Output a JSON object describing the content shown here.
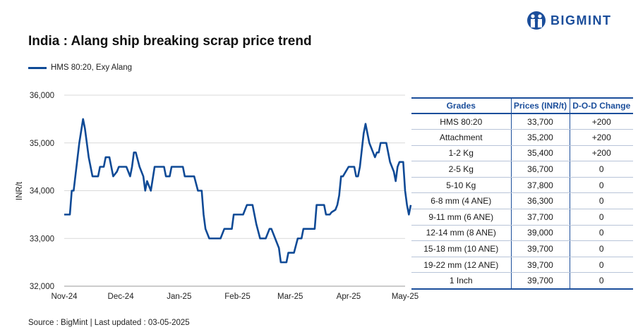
{
  "brand": {
    "name": "BIGMINT",
    "color": "#1b4e9b"
  },
  "title": "India : Alang ship breaking scrap price trend",
  "source": "Source : BigMint | Last updated : 03-05-2025",
  "chart_data": {
    "type": "line",
    "ylabel": "INR/t",
    "ylim": [
      32000,
      36000
    ],
    "yticks": [
      "32,000",
      "33,000",
      "34,000",
      "35,000",
      "36,000"
    ],
    "xticks": [
      "Nov-24",
      "Dec-24",
      "Jan-25",
      "Feb-25",
      "Mar-25",
      "Apr-25",
      "May-25"
    ],
    "grid": "horizontal",
    "legend": "top-left",
    "series": [
      {
        "name": "HMS 80:20, Exy Alang",
        "color": "#0f4a96",
        "points": [
          [
            "2024-11-01",
            33500
          ],
          [
            "2024-11-04",
            33500
          ],
          [
            "2024-11-05",
            34000
          ],
          [
            "2024-11-06",
            34000
          ],
          [
            "2024-11-09",
            35000
          ],
          [
            "2024-11-11",
            35500
          ],
          [
            "2024-11-12",
            35300
          ],
          [
            "2024-11-14",
            34700
          ],
          [
            "2024-11-16",
            34300
          ],
          [
            "2024-11-19",
            34300
          ],
          [
            "2024-11-20",
            34500
          ],
          [
            "2024-11-22",
            34500
          ],
          [
            "2024-11-23",
            34700
          ],
          [
            "2024-11-25",
            34700
          ],
          [
            "2024-11-26",
            34500
          ],
          [
            "2024-11-27",
            34300
          ],
          [
            "2024-11-29",
            34400
          ],
          [
            "2024-11-30",
            34500
          ],
          [
            "2024-12-04",
            34500
          ],
          [
            "2024-12-06",
            34300
          ],
          [
            "2024-12-07",
            34500
          ],
          [
            "2024-12-08",
            34800
          ],
          [
            "2024-12-09",
            34800
          ],
          [
            "2024-12-11",
            34500
          ],
          [
            "2024-12-13",
            34300
          ],
          [
            "2024-12-14",
            34000
          ],
          [
            "2024-12-15",
            34200
          ],
          [
            "2024-12-17",
            34000
          ],
          [
            "2024-12-19",
            34500
          ],
          [
            "2024-12-24",
            34500
          ],
          [
            "2024-12-25",
            34300
          ],
          [
            "2024-12-27",
            34300
          ],
          [
            "2024-12-28",
            34500
          ],
          [
            "2025-01-03",
            34500
          ],
          [
            "2025-01-04",
            34300
          ],
          [
            "2025-01-09",
            34300
          ],
          [
            "2025-01-11",
            34000
          ],
          [
            "2025-01-13",
            34000
          ],
          [
            "2025-01-14",
            33500
          ],
          [
            "2025-01-15",
            33200
          ],
          [
            "2025-01-17",
            33000
          ],
          [
            "2025-01-23",
            33000
          ],
          [
            "2025-01-25",
            33200
          ],
          [
            "2025-01-29",
            33200
          ],
          [
            "2025-01-30",
            33500
          ],
          [
            "2025-02-04",
            33500
          ],
          [
            "2025-02-06",
            33700
          ],
          [
            "2025-02-09",
            33700
          ],
          [
            "2025-02-10",
            33500
          ],
          [
            "2025-02-11",
            33300
          ],
          [
            "2025-02-13",
            33000
          ],
          [
            "2025-02-16",
            33000
          ],
          [
            "2025-02-18",
            33200
          ],
          [
            "2025-02-19",
            33200
          ],
          [
            "2025-02-21",
            33000
          ],
          [
            "2025-02-23",
            32800
          ],
          [
            "2025-02-24",
            32500
          ],
          [
            "2025-02-27",
            32500
          ],
          [
            "2025-02-28",
            32700
          ],
          [
            "2025-03-03",
            32700
          ],
          [
            "2025-03-05",
            33000
          ],
          [
            "2025-03-07",
            33000
          ],
          [
            "2025-03-08",
            33200
          ],
          [
            "2025-03-14",
            33200
          ],
          [
            "2025-03-15",
            33700
          ],
          [
            "2025-03-19",
            33700
          ],
          [
            "2025-03-20",
            33500
          ],
          [
            "2025-03-22",
            33500
          ],
          [
            "2025-03-23",
            33550
          ],
          [
            "2025-03-25",
            33600
          ],
          [
            "2025-03-26",
            33700
          ],
          [
            "2025-03-27",
            33900
          ],
          [
            "2025-03-28",
            34300
          ],
          [
            "2025-03-29",
            34300
          ],
          [
            "2025-04-01",
            34500
          ],
          [
            "2025-04-04",
            34500
          ],
          [
            "2025-04-05",
            34300
          ],
          [
            "2025-04-06",
            34300
          ],
          [
            "2025-04-07",
            34500
          ],
          [
            "2025-04-09",
            35200
          ],
          [
            "2025-04-10",
            35400
          ],
          [
            "2025-04-11",
            35200
          ],
          [
            "2025-04-12",
            35000
          ],
          [
            "2025-04-14",
            34800
          ],
          [
            "2025-04-15",
            34700
          ],
          [
            "2025-04-16",
            34800
          ],
          [
            "2025-04-17",
            34800
          ],
          [
            "2025-04-18",
            35000
          ],
          [
            "2025-04-21",
            35000
          ],
          [
            "2025-04-22",
            34800
          ],
          [
            "2025-04-23",
            34600
          ],
          [
            "2025-04-25",
            34400
          ],
          [
            "2025-04-26",
            34200
          ],
          [
            "2025-04-27",
            34500
          ],
          [
            "2025-04-28",
            34600
          ],
          [
            "2025-04-30",
            34600
          ],
          [
            "2025-05-01",
            34000
          ],
          [
            "2025-05-02",
            33700
          ],
          [
            "2025-05-03",
            33500
          ],
          [
            "2025-05-04",
            33700
          ]
        ]
      }
    ]
  },
  "table": {
    "headers": [
      "Grades",
      "Prices (INR/t)",
      "D-O-D Change"
    ],
    "rows": [
      [
        "HMS 80:20",
        "33,700",
        "+200"
      ],
      [
        "Attachment",
        "35,200",
        "+200"
      ],
      [
        "1-2 Kg",
        "35,400",
        "+200"
      ],
      [
        "2-5 Kg",
        "36,700",
        "0"
      ],
      [
        "5-10 Kg",
        "37,800",
        "0"
      ],
      [
        "6-8 mm (4 ANE)",
        "36,300",
        "0"
      ],
      [
        "9-11 mm (6 ANE)",
        "37,700",
        "0"
      ],
      [
        "12-14 mm (8 ANE)",
        "39,000",
        "0"
      ],
      [
        "15-18 mm (10 ANE)",
        "39,700",
        "0"
      ],
      [
        "19-22 mm (12 ANE)",
        "39,700",
        "0"
      ],
      [
        "1 Inch",
        "39,700",
        "0"
      ]
    ]
  }
}
